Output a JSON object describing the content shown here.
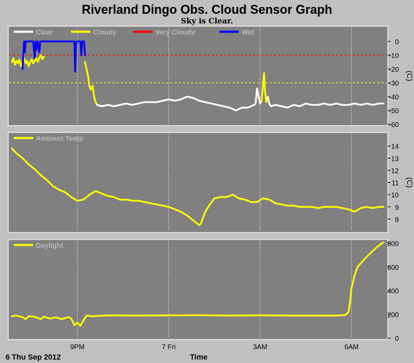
{
  "header": {
    "title": "Riverland Dingo Obs. Cloud Sensor Graph",
    "subtitle": "Sky is Clear."
  },
  "footer": {
    "date_label": "6 Thu Sep 2012",
    "x_title": "Time"
  },
  "colors": {
    "page_bg": "#c0c0c0",
    "plot_bg": "#808080",
    "clear": "#ffffff",
    "cloudy": "#ffff00",
    "very_cloudy": "#ff0000",
    "wet": "#0000ff",
    "grid": "#ffffff",
    "text": "#000000"
  },
  "chart_data": [
    {
      "type": "line",
      "name": "sky-temperature",
      "ylabel": "(C)",
      "ylim": [
        -60,
        10
      ],
      "yticks": [
        0,
        -10,
        -20,
        -30,
        -40,
        -50,
        -60
      ],
      "x_tick_labels": [
        "9PM",
        "7 Fri",
        "3AM",
        "6AM"
      ],
      "x_tick_hours": [
        21,
        24,
        27,
        30
      ],
      "xlim_hours": [
        18.8,
        31.1
      ],
      "legend": [
        {
          "name": "Clear",
          "color": "#ffffff"
        },
        {
          "name": "Cloudy",
          "color": "#ffff00"
        },
        {
          "name": "Very Cloudy",
          "color": "#ff0000"
        },
        {
          "name": "Wet",
          "color": "#0000ff"
        }
      ],
      "thresholds": [
        {
          "value": -10,
          "color": "#ff0000"
        },
        {
          "value": -30,
          "color": "#ffff00"
        }
      ],
      "series": [
        {
          "name": "Cloudy",
          "color": "#ffff00",
          "points": [
            [
              18.85,
              -15
            ],
            [
              18.9,
              -12
            ],
            [
              18.95,
              -17
            ],
            [
              19.0,
              -14
            ],
            [
              19.05,
              -16
            ],
            [
              19.1,
              -13
            ],
            [
              19.15,
              -18
            ],
            [
              19.2,
              -15
            ],
            [
              19.25,
              -12
            ],
            [
              19.3,
              -16
            ],
            [
              19.35,
              -14
            ],
            [
              19.4,
              -18
            ],
            [
              19.45,
              -15
            ],
            [
              19.5,
              -13
            ],
            [
              19.55,
              -16
            ],
            [
              19.6,
              -14
            ],
            [
              19.65,
              -12
            ],
            [
              19.7,
              -15
            ],
            [
              19.75,
              -12
            ],
            [
              19.8,
              -10
            ],
            [
              19.85,
              -13
            ],
            [
              19.9,
              -11
            ]
          ]
        },
        {
          "name": "Wet",
          "color": "#0000ff",
          "points": [
            [
              19.2,
              -20
            ],
            [
              19.25,
              0
            ],
            [
              19.28,
              -8
            ],
            [
              19.3,
              0
            ],
            [
              19.4,
              0
            ],
            [
              19.55,
              0
            ],
            [
              19.6,
              -12
            ],
            [
              19.63,
              0
            ],
            [
              19.66,
              -6
            ],
            [
              19.7,
              0
            ],
            [
              19.75,
              -8
            ],
            [
              19.78,
              0
            ],
            [
              19.8,
              0
            ],
            [
              20.6,
              0
            ],
            [
              20.85,
              0
            ],
            [
              20.9,
              0
            ],
            [
              20.93,
              -22
            ],
            [
              20.96,
              0
            ],
            [
              21.0,
              0
            ],
            [
              21.1,
              0
            ],
            [
              21.13,
              -10
            ],
            [
              21.16,
              0
            ],
            [
              21.22,
              0
            ],
            [
              21.25,
              -10
            ]
          ]
        },
        {
          "name": "Cloudy",
          "color": "#ffff00",
          "points": [
            [
              21.25,
              -15
            ],
            [
              21.3,
              -20
            ],
            [
              21.35,
              -25
            ],
            [
              21.4,
              -33
            ],
            [
              21.45,
              -35
            ],
            [
              21.5,
              -32
            ],
            [
              21.55,
              -40
            ],
            [
              21.6,
              -44
            ],
            [
              21.65,
              -46
            ]
          ]
        },
        {
          "name": "Clear",
          "color": "#ffffff",
          "points": [
            [
              21.65,
              -46
            ],
            [
              21.8,
              -47
            ],
            [
              22.0,
              -46
            ],
            [
              22.2,
              -47
            ],
            [
              22.4,
              -46
            ],
            [
              22.6,
              -45
            ],
            [
              22.8,
              -46
            ],
            [
              23.0,
              -45
            ],
            [
              23.2,
              -44
            ],
            [
              23.4,
              -44
            ],
            [
              23.6,
              -44
            ],
            [
              23.8,
              -43
            ],
            [
              24.0,
              -42
            ],
            [
              24.2,
              -43
            ],
            [
              24.4,
              -42
            ],
            [
              24.6,
              -40
            ],
            [
              24.8,
              -41
            ],
            [
              25.0,
              -43
            ],
            [
              25.2,
              -44
            ],
            [
              25.4,
              -45
            ],
            [
              25.6,
              -46
            ],
            [
              25.8,
              -47
            ],
            [
              26.0,
              -48
            ],
            [
              26.2,
              -50
            ],
            [
              26.4,
              -48
            ],
            [
              26.6,
              -48
            ],
            [
              26.8,
              -46
            ],
            [
              26.85,
              -45
            ],
            [
              26.9,
              -34
            ],
            [
              26.95,
              -40
            ],
            [
              27.0,
              -45
            ],
            [
              27.05,
              -43
            ]
          ]
        },
        {
          "name": "Cloudy",
          "color": "#ffff00",
          "points": [
            [
              27.05,
              -43
            ],
            [
              27.1,
              -30
            ],
            [
              27.13,
              -23
            ],
            [
              27.16,
              -36
            ],
            [
              27.2,
              -44
            ],
            [
              27.25,
              -40
            ]
          ]
        },
        {
          "name": "Clear",
          "color": "#ffffff",
          "points": [
            [
              27.25,
              -40
            ],
            [
              27.3,
              -45
            ],
            [
              27.35,
              -47
            ],
            [
              27.5,
              -46
            ],
            [
              27.7,
              -47
            ],
            [
              27.9,
              -48
            ],
            [
              28.1,
              -46
            ],
            [
              28.3,
              -47
            ],
            [
              28.5,
              -45
            ],
            [
              28.7,
              -46
            ],
            [
              28.9,
              -46
            ],
            [
              29.1,
              -45
            ],
            [
              29.3,
              -46
            ],
            [
              29.5,
              -45
            ],
            [
              29.7,
              -46
            ],
            [
              29.9,
              -46
            ],
            [
              30.1,
              -45
            ],
            [
              30.3,
              -46
            ],
            [
              30.5,
              -45
            ],
            [
              30.7,
              -46
            ],
            [
              30.9,
              -45
            ],
            [
              31.05,
              -45
            ]
          ]
        }
      ]
    },
    {
      "type": "line",
      "name": "ambient-temperature",
      "ylabel": "(C)",
      "ylim": [
        7,
        15
      ],
      "yticks": [
        14,
        13,
        12,
        11,
        10,
        9,
        8
      ],
      "x_tick_hours": [
        21,
        24,
        27,
        30
      ],
      "xlim_hours": [
        18.8,
        31.1
      ],
      "legend": [
        {
          "name": "Ambient Temp",
          "color": "#ffff00"
        }
      ],
      "series": [
        {
          "name": "Ambient Temp",
          "color": "#ffff00",
          "points": [
            [
              18.85,
              13.8
            ],
            [
              19.0,
              13.4
            ],
            [
              19.2,
              13.0
            ],
            [
              19.4,
              12.5
            ],
            [
              19.6,
              12.1
            ],
            [
              19.8,
              11.6
            ],
            [
              20.0,
              11.2
            ],
            [
              20.2,
              10.7
            ],
            [
              20.4,
              10.4
            ],
            [
              20.6,
              10.2
            ],
            [
              20.8,
              9.8
            ],
            [
              21.0,
              9.5
            ],
            [
              21.2,
              9.6
            ],
            [
              21.4,
              10.0
            ],
            [
              21.6,
              10.3
            ],
            [
              21.8,
              10.1
            ],
            [
              22.0,
              9.9
            ],
            [
              22.2,
              9.8
            ],
            [
              22.4,
              9.6
            ],
            [
              22.6,
              9.6
            ],
            [
              22.8,
              9.5
            ],
            [
              23.0,
              9.5
            ],
            [
              23.2,
              9.4
            ],
            [
              23.4,
              9.3
            ],
            [
              23.6,
              9.2
            ],
            [
              23.8,
              9.1
            ],
            [
              24.0,
              9.0
            ],
            [
              24.2,
              8.8
            ],
            [
              24.4,
              8.6
            ],
            [
              24.6,
              8.3
            ],
            [
              24.8,
              7.9
            ],
            [
              25.0,
              7.5
            ],
            [
              25.05,
              7.6
            ],
            [
              25.2,
              8.6
            ],
            [
              25.35,
              9.2
            ],
            [
              25.5,
              9.7
            ],
            [
              25.7,
              9.8
            ],
            [
              25.9,
              9.8
            ],
            [
              26.1,
              10.0
            ],
            [
              26.3,
              9.7
            ],
            [
              26.5,
              9.6
            ],
            [
              26.7,
              9.4
            ],
            [
              26.9,
              9.4
            ],
            [
              27.1,
              9.7
            ],
            [
              27.3,
              9.6
            ],
            [
              27.5,
              9.3
            ],
            [
              27.7,
              9.2
            ],
            [
              27.9,
              9.1
            ],
            [
              28.1,
              9.1
            ],
            [
              28.3,
              9.0
            ],
            [
              28.5,
              9.0
            ],
            [
              28.7,
              9.0
            ],
            [
              28.9,
              8.9
            ],
            [
              29.1,
              9.0
            ],
            [
              29.3,
              9.0
            ],
            [
              29.5,
              9.0
            ],
            [
              29.7,
              8.9
            ],
            [
              29.9,
              8.8
            ],
            [
              30.1,
              8.6
            ],
            [
              30.3,
              8.9
            ],
            [
              30.5,
              9.0
            ],
            [
              30.7,
              8.9
            ],
            [
              30.9,
              9.0
            ],
            [
              31.05,
              9.0
            ]
          ]
        }
      ]
    },
    {
      "type": "line",
      "name": "daylight",
      "ylabel": "",
      "ylim": [
        0,
        820
      ],
      "yticks": [
        800,
        600,
        400,
        200,
        0
      ],
      "x_tick_hours": [
        21,
        24,
        27,
        30
      ],
      "xlim_hours": [
        18.8,
        31.1
      ],
      "legend": [
        {
          "name": "Daylight",
          "color": "#ffff00"
        }
      ],
      "series": [
        {
          "name": "Daylight",
          "color": "#ffff00",
          "points": [
            [
              18.85,
              185
            ],
            [
              19.0,
              190
            ],
            [
              19.2,
              178
            ],
            [
              19.3,
              160
            ],
            [
              19.4,
              185
            ],
            [
              19.6,
              180
            ],
            [
              19.8,
              160
            ],
            [
              19.9,
              180
            ],
            [
              20.1,
              165
            ],
            [
              20.3,
              175
            ],
            [
              20.5,
              160
            ],
            [
              20.7,
              178
            ],
            [
              20.8,
              165
            ],
            [
              20.9,
              110
            ],
            [
              21.0,
              130
            ],
            [
              21.1,
              105
            ],
            [
              21.2,
              150
            ],
            [
              21.3,
              190
            ],
            [
              21.5,
              185
            ],
            [
              22.0,
              192
            ],
            [
              23.0,
              190
            ],
            [
              24.0,
              192
            ],
            [
              25.0,
              193
            ],
            [
              26.0,
              190
            ],
            [
              27.0,
              192
            ],
            [
              28.0,
              190
            ],
            [
              29.0,
              190
            ],
            [
              29.5,
              190
            ],
            [
              29.8,
              195
            ],
            [
              29.9,
              220
            ],
            [
              29.95,
              300
            ],
            [
              30.0,
              420
            ],
            [
              30.1,
              530
            ],
            [
              30.2,
              600
            ],
            [
              30.4,
              660
            ],
            [
              30.6,
              710
            ],
            [
              30.8,
              760
            ],
            [
              31.0,
              800
            ],
            [
              31.05,
              805
            ]
          ]
        }
      ]
    }
  ]
}
